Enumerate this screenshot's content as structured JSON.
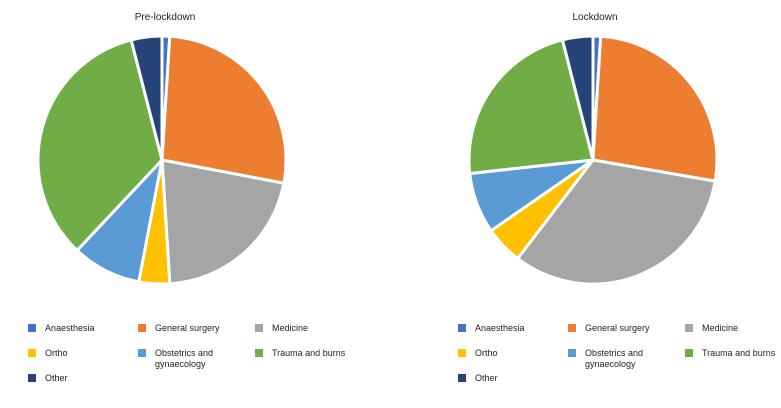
{
  "chart_data": [
    {
      "type": "pie",
      "title": "Pre-lockdown",
      "labels": [
        "Anaesthesia",
        "General surgery",
        "Medicine",
        "Ortho",
        "Obstetrics and gynaecology",
        "Trauma and burns",
        "Other"
      ],
      "values": [
        1,
        27,
        21,
        4,
        9,
        34,
        4
      ],
      "colors": [
        "#4472c4",
        "#ed7d31",
        "#a5a5a5",
        "#ffc000",
        "#5b9bd5",
        "#70ad47",
        "#264478"
      ]
    },
    {
      "type": "pie",
      "title": "Lockdown",
      "labels": [
        "Anaesthesia",
        "General surgery",
        "Medicine",
        "Ortho",
        "Obstetrics and gynaecology",
        "Trauma and burns",
        "Other"
      ],
      "values": [
        1,
        27,
        33,
        5,
        8,
        23,
        4
      ],
      "colors": [
        "#4472c4",
        "#ed7d31",
        "#a5a5a5",
        "#ffc000",
        "#5b9bd5",
        "#70ad47",
        "#264478"
      ]
    }
  ]
}
